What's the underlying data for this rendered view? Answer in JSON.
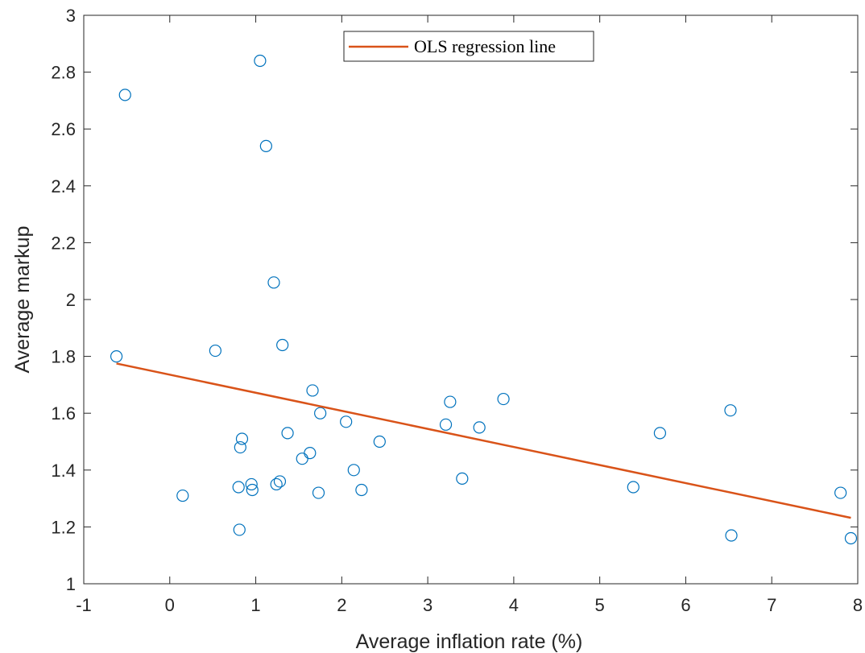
{
  "chart_data": {
    "type": "scatter",
    "xlabel": "Average inflation rate (%)",
    "ylabel": "Average markup",
    "xlim": [
      -1,
      8
    ],
    "ylim": [
      1,
      3
    ],
    "xticks": [
      "-1",
      "0",
      "1",
      "2",
      "3",
      "4",
      "5",
      "6",
      "7",
      "8"
    ],
    "yticks": [
      "1",
      "1.2",
      "1.4",
      "1.6",
      "1.8",
      "2",
      "2.2",
      "2.4",
      "2.6",
      "2.8",
      "3"
    ],
    "grid": false,
    "legend_position": "top-center",
    "series": [
      {
        "kind": "scatter",
        "marker": "open-circle",
        "color": "#0072BD",
        "points": [
          [
            -0.62,
            1.8
          ],
          [
            -0.52,
            2.72
          ],
          [
            0.15,
            1.31
          ],
          [
            0.53,
            1.82
          ],
          [
            0.8,
            1.34
          ],
          [
            0.81,
            1.19
          ],
          [
            0.82,
            1.48
          ],
          [
            0.84,
            1.51
          ],
          [
            0.95,
            1.35
          ],
          [
            0.96,
            1.33
          ],
          [
            1.05,
            2.84
          ],
          [
            1.12,
            2.54
          ],
          [
            1.21,
            2.06
          ],
          [
            1.24,
            1.35
          ],
          [
            1.28,
            1.36
          ],
          [
            1.31,
            1.84
          ],
          [
            1.37,
            1.53
          ],
          [
            1.54,
            1.44
          ],
          [
            1.63,
            1.46
          ],
          [
            1.66,
            1.68
          ],
          [
            1.73,
            1.32
          ],
          [
            1.75,
            1.6
          ],
          [
            2.05,
            1.57
          ],
          [
            2.14,
            1.4
          ],
          [
            2.23,
            1.33
          ],
          [
            2.44,
            1.5
          ],
          [
            3.21,
            1.56
          ],
          [
            3.26,
            1.64
          ],
          [
            3.4,
            1.37
          ],
          [
            3.6,
            1.55
          ],
          [
            3.88,
            1.65
          ],
          [
            5.39,
            1.34
          ],
          [
            5.7,
            1.53
          ],
          [
            6.52,
            1.61
          ],
          [
            6.53,
            1.17
          ],
          [
            7.8,
            1.32
          ],
          [
            7.92,
            1.16
          ]
        ]
      },
      {
        "kind": "line",
        "name": "OLS regression line",
        "color": "#D95319",
        "points": [
          [
            -0.62,
            1.775
          ],
          [
            7.92,
            1.232
          ]
        ]
      }
    ]
  }
}
